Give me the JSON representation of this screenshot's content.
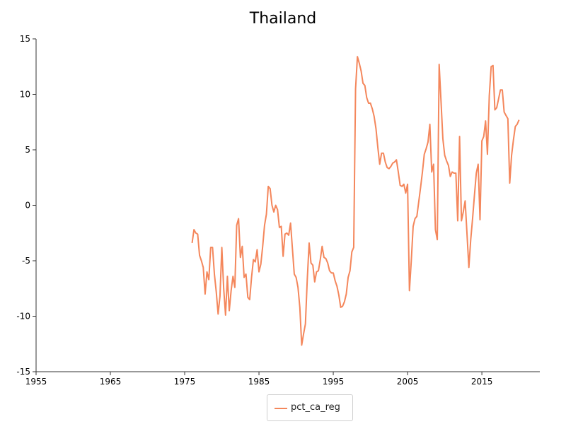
{
  "chart_data": {
    "type": "line",
    "title": "Thailand",
    "xlabel": "",
    "ylabel": "",
    "xlim": [
      1955,
      2022.8
    ],
    "ylim": [
      -15,
      15
    ],
    "xticks": [
      1955,
      1965,
      1975,
      1985,
      1995,
      2005,
      2015
    ],
    "yticks": [
      -15,
      -10,
      -5,
      0,
      5,
      10,
      15
    ],
    "grid": false,
    "legend_position": "bottom-center",
    "series": [
      {
        "name": "pct_ca_reg",
        "color": "#f4875c",
        "points": [
          [
            1976.0,
            -3.4
          ],
          [
            1976.25,
            -2.2
          ],
          [
            1976.5,
            -2.5
          ],
          [
            1976.75,
            -2.6
          ],
          [
            1977.0,
            -4.5
          ],
          [
            1977.25,
            -5.0
          ],
          [
            1977.5,
            -5.6
          ],
          [
            1977.75,
            -8.0
          ],
          [
            1978.0,
            -6.0
          ],
          [
            1978.25,
            -6.7
          ],
          [
            1978.5,
            -3.8
          ],
          [
            1978.75,
            -3.8
          ],
          [
            1979.0,
            -6.2
          ],
          [
            1979.25,
            -7.8
          ],
          [
            1979.5,
            -9.8
          ],
          [
            1979.75,
            -8.2
          ],
          [
            1980.0,
            -3.8
          ],
          [
            1980.25,
            -7.5
          ],
          [
            1980.5,
            -9.9
          ],
          [
            1980.75,
            -6.4
          ],
          [
            1981.0,
            -9.5
          ],
          [
            1981.25,
            -7.7
          ],
          [
            1981.5,
            -6.4
          ],
          [
            1981.75,
            -7.4
          ],
          [
            1982.0,
            -1.8
          ],
          [
            1982.25,
            -1.2
          ],
          [
            1982.5,
            -4.7
          ],
          [
            1982.75,
            -3.7
          ],
          [
            1983.0,
            -6.5
          ],
          [
            1983.25,
            -6.2
          ],
          [
            1983.5,
            -8.3
          ],
          [
            1983.75,
            -8.5
          ],
          [
            1984.0,
            -6.5
          ],
          [
            1984.25,
            -4.9
          ],
          [
            1984.5,
            -5.1
          ],
          [
            1984.75,
            -4.0
          ],
          [
            1985.0,
            -6.0
          ],
          [
            1985.25,
            -5.3
          ],
          [
            1985.5,
            -3.7
          ],
          [
            1985.75,
            -1.8
          ],
          [
            1986.0,
            -0.8
          ],
          [
            1986.25,
            1.7
          ],
          [
            1986.5,
            1.5
          ],
          [
            1986.75,
            0.0
          ],
          [
            1987.0,
            -0.6
          ],
          [
            1987.25,
            0.0
          ],
          [
            1987.5,
            -0.4
          ],
          [
            1987.75,
            -2.0
          ],
          [
            1988.0,
            -1.9
          ],
          [
            1988.25,
            -4.6
          ],
          [
            1988.5,
            -2.6
          ],
          [
            1988.75,
            -2.5
          ],
          [
            1989.0,
            -2.7
          ],
          [
            1989.25,
            -1.6
          ],
          [
            1989.5,
            -3.9
          ],
          [
            1989.75,
            -6.2
          ],
          [
            1990.0,
            -6.5
          ],
          [
            1990.25,
            -7.4
          ],
          [
            1990.5,
            -9.2
          ],
          [
            1990.75,
            -12.6
          ],
          [
            1991.0,
            -11.6
          ],
          [
            1991.25,
            -10.7
          ],
          [
            1991.5,
            -6.7
          ],
          [
            1991.75,
            -3.4
          ],
          [
            1992.0,
            -5.2
          ],
          [
            1992.25,
            -5.4
          ],
          [
            1992.5,
            -6.9
          ],
          [
            1992.75,
            -6.0
          ],
          [
            1993.0,
            -5.9
          ],
          [
            1993.25,
            -4.9
          ],
          [
            1993.5,
            -3.7
          ],
          [
            1993.75,
            -4.7
          ],
          [
            1994.0,
            -4.8
          ],
          [
            1994.25,
            -5.2
          ],
          [
            1994.5,
            -5.9
          ],
          [
            1994.75,
            -6.1
          ],
          [
            1995.0,
            -6.1
          ],
          [
            1995.25,
            -6.8
          ],
          [
            1995.5,
            -7.3
          ],
          [
            1995.75,
            -8.1
          ],
          [
            1996.0,
            -9.2
          ],
          [
            1996.25,
            -9.1
          ],
          [
            1996.5,
            -8.7
          ],
          [
            1996.75,
            -8.0
          ],
          [
            1997.0,
            -6.5
          ],
          [
            1997.25,
            -5.9
          ],
          [
            1997.5,
            -4.2
          ],
          [
            1997.75,
            -3.8
          ],
          [
            1998.0,
            10.5
          ],
          [
            1998.25,
            13.4
          ],
          [
            1998.5,
            12.8
          ],
          [
            1998.75,
            12.1
          ],
          [
            1999.0,
            11.0
          ],
          [
            1999.25,
            10.8
          ],
          [
            1999.5,
            9.7
          ],
          [
            1999.75,
            9.2
          ],
          [
            2000.0,
            9.2
          ],
          [
            2000.25,
            8.7
          ],
          [
            2000.5,
            8.0
          ],
          [
            2000.75,
            6.9
          ],
          [
            2001.0,
            5.2
          ],
          [
            2001.25,
            3.7
          ],
          [
            2001.5,
            4.7
          ],
          [
            2001.75,
            4.7
          ],
          [
            2002.0,
            3.9
          ],
          [
            2002.25,
            3.4
          ],
          [
            2002.5,
            3.3
          ],
          [
            2002.75,
            3.5
          ],
          [
            2003.0,
            3.8
          ],
          [
            2003.25,
            3.9
          ],
          [
            2003.5,
            4.1
          ],
          [
            2003.75,
            3.0
          ],
          [
            2004.0,
            1.8
          ],
          [
            2004.25,
            1.7
          ],
          [
            2004.5,
            1.9
          ],
          [
            2004.75,
            1.1
          ],
          [
            2005.0,
            1.9
          ],
          [
            2005.25,
            -7.7
          ],
          [
            2005.5,
            -5.0
          ],
          [
            2005.75,
            -1.9
          ],
          [
            2006.0,
            -1.2
          ],
          [
            2006.25,
            -1.0
          ],
          [
            2006.5,
            0.3
          ],
          [
            2006.75,
            1.6
          ],
          [
            2007.0,
            3.0
          ],
          [
            2007.25,
            4.6
          ],
          [
            2007.5,
            5.1
          ],
          [
            2007.75,
            5.7
          ],
          [
            2008.0,
            7.3
          ],
          [
            2008.25,
            3.0
          ],
          [
            2008.5,
            3.7
          ],
          [
            2008.75,
            -2.2
          ],
          [
            2009.0,
            -3.1
          ],
          [
            2009.25,
            12.7
          ],
          [
            2009.5,
            9.4
          ],
          [
            2009.75,
            6.0
          ],
          [
            2010.0,
            4.5
          ],
          [
            2010.25,
            4.0
          ],
          [
            2010.5,
            3.6
          ],
          [
            2010.75,
            2.6
          ],
          [
            2011.0,
            3.0
          ],
          [
            2011.25,
            2.9
          ],
          [
            2011.5,
            2.9
          ],
          [
            2011.75,
            -1.4
          ],
          [
            2012.0,
            6.2
          ],
          [
            2012.25,
            -1.4
          ],
          [
            2012.5,
            -0.6
          ],
          [
            2012.75,
            0.4
          ],
          [
            2013.0,
            -2.6
          ],
          [
            2013.25,
            -5.6
          ],
          [
            2013.5,
            -3.1
          ],
          [
            2013.75,
            -1.2
          ],
          [
            2014.0,
            0.9
          ],
          [
            2014.25,
            2.9
          ],
          [
            2014.5,
            3.7
          ],
          [
            2014.75,
            -1.3
          ],
          [
            2015.0,
            5.8
          ],
          [
            2015.25,
            6.2
          ],
          [
            2015.5,
            7.6
          ],
          [
            2015.75,
            4.6
          ],
          [
            2016.0,
            9.9
          ],
          [
            2016.25,
            12.5
          ],
          [
            2016.5,
            12.6
          ],
          [
            2016.75,
            8.6
          ],
          [
            2017.0,
            8.8
          ],
          [
            2017.25,
            9.6
          ],
          [
            2017.5,
            10.4
          ],
          [
            2017.75,
            10.4
          ],
          [
            2018.0,
            8.4
          ],
          [
            2018.25,
            8.1
          ],
          [
            2018.5,
            7.8
          ],
          [
            2018.75,
            2.0
          ],
          [
            2019.0,
            4.5
          ],
          [
            2019.25,
            5.9
          ],
          [
            2019.5,
            7.1
          ],
          [
            2019.75,
            7.3
          ],
          [
            2020.0,
            7.7
          ]
        ]
      }
    ]
  }
}
